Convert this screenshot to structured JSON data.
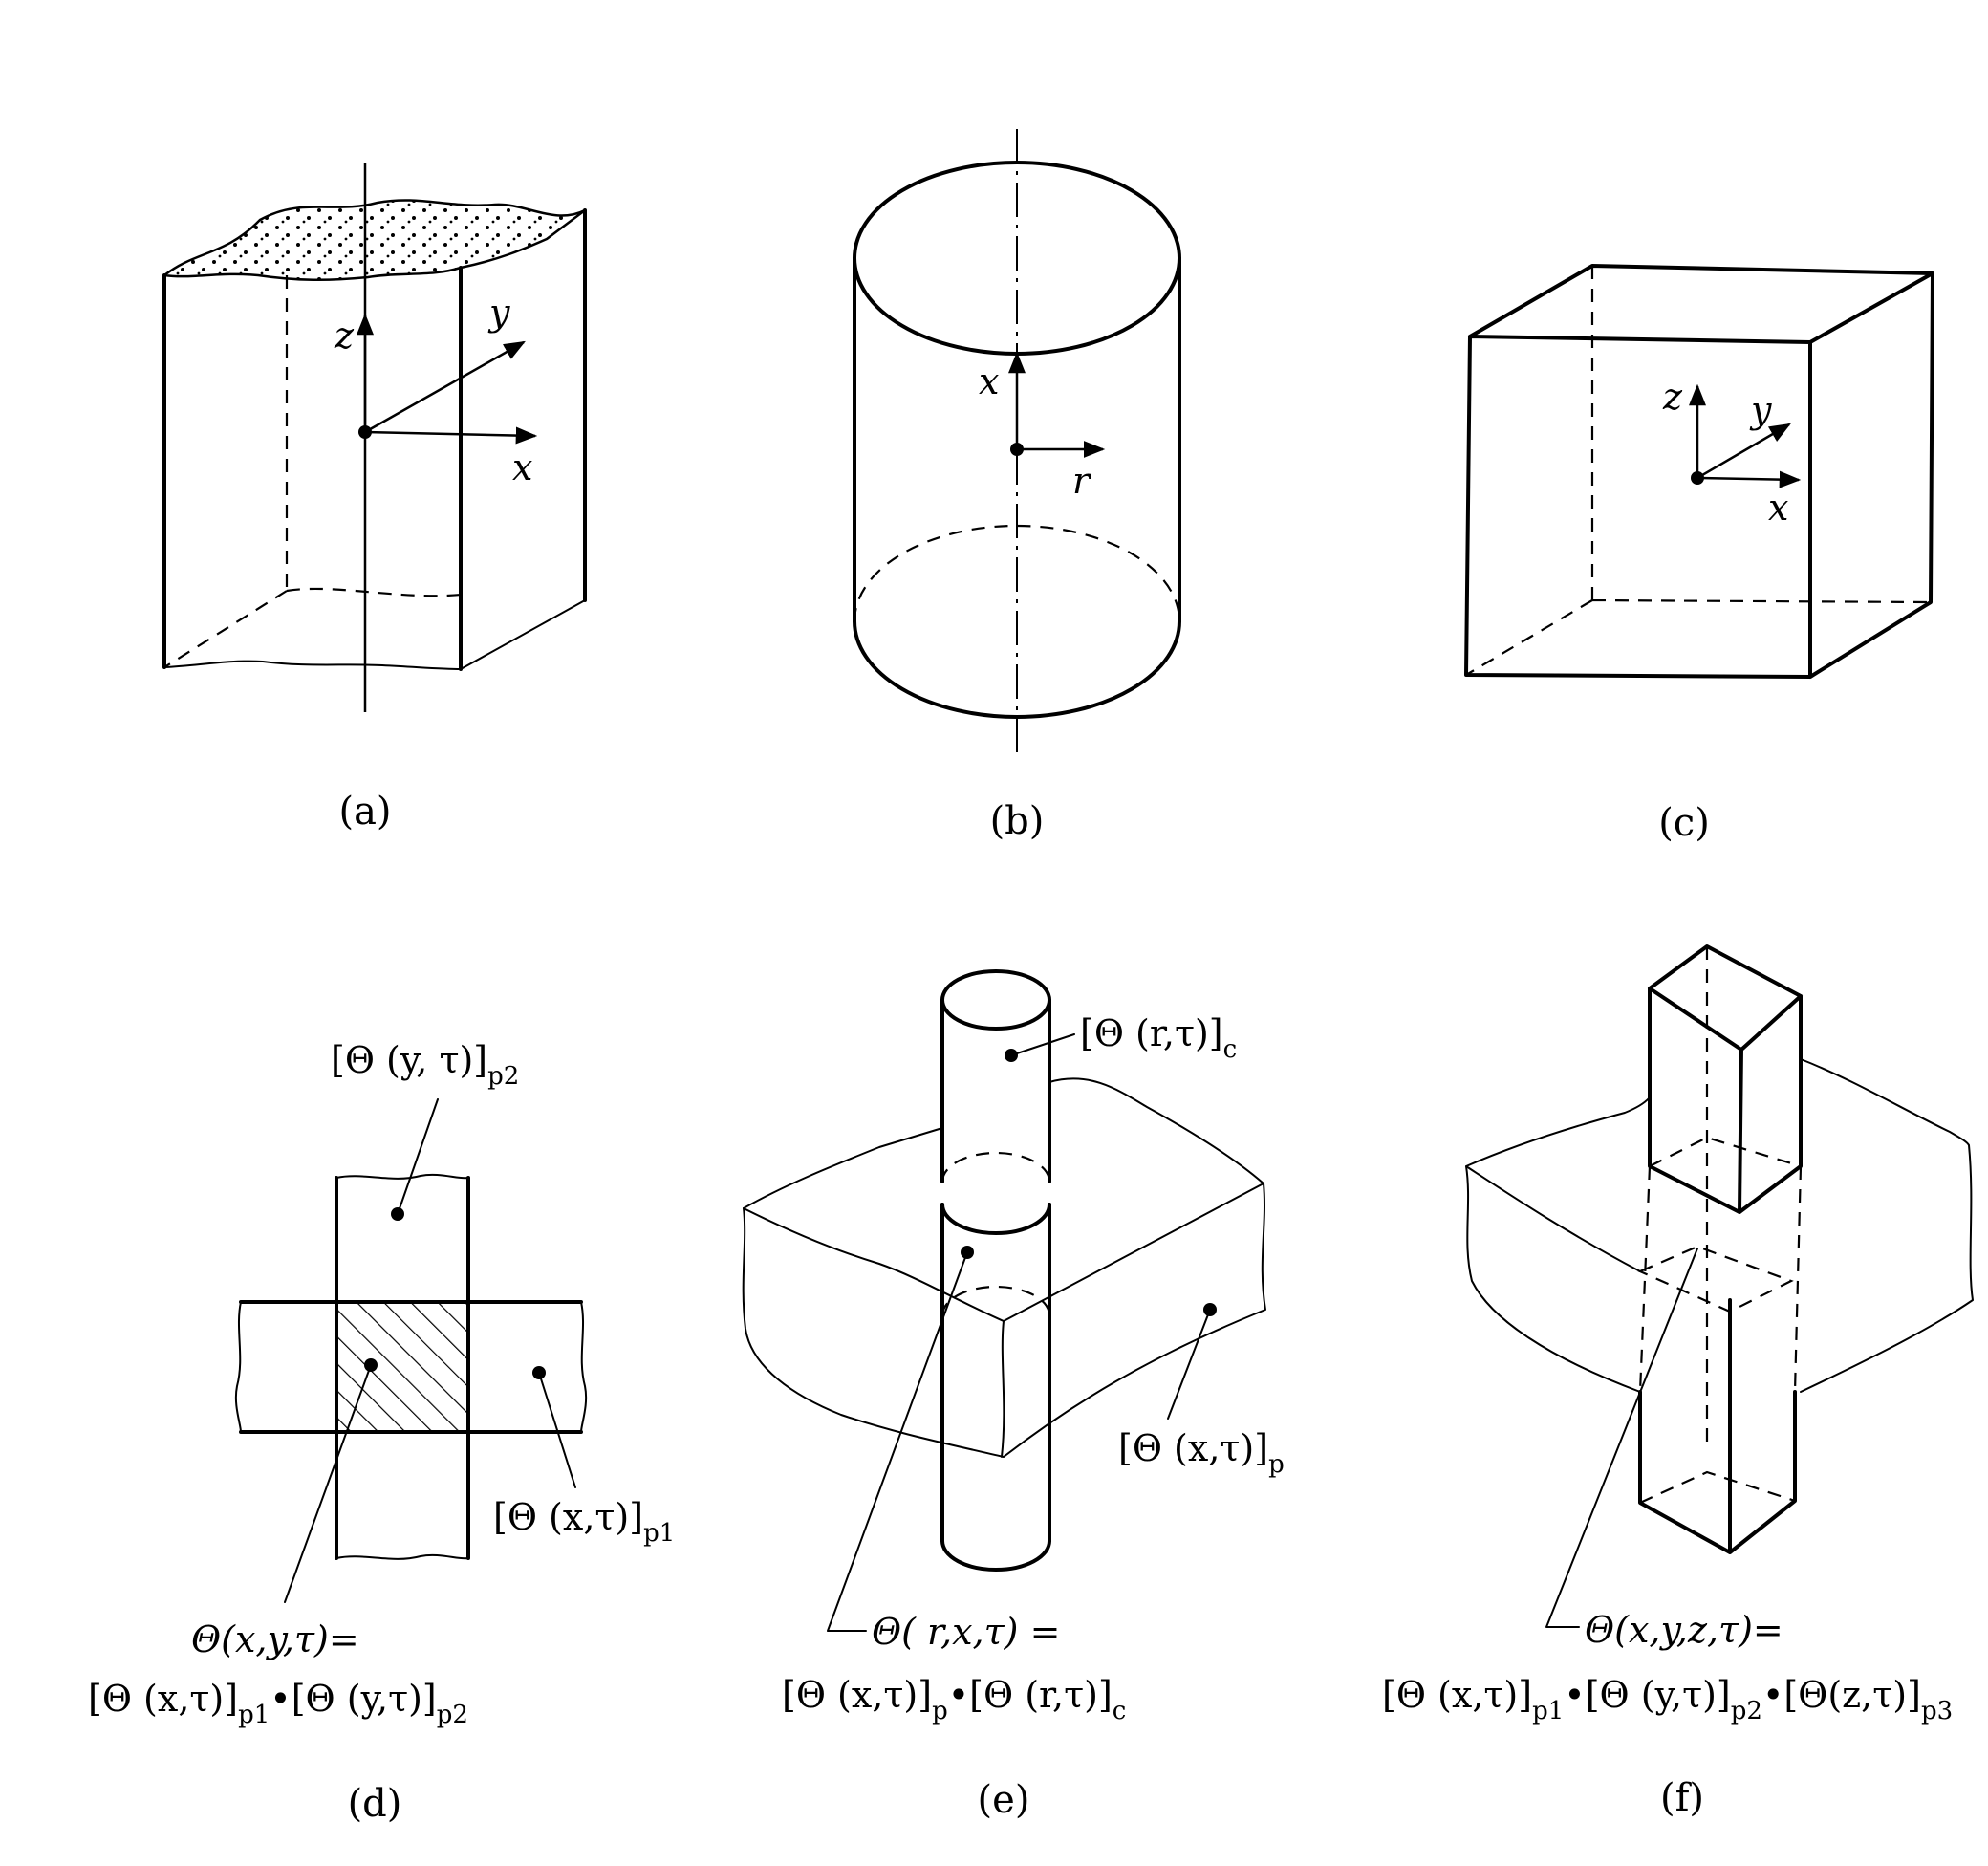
{
  "captions": {
    "a": "(a)",
    "b": "(b)",
    "c": "(c)",
    "d": "(d)",
    "e": "(e)",
    "f": "(f)"
  },
  "axes": {
    "a": {
      "z": "z",
      "y": "y",
      "x": "x"
    },
    "b": {
      "x": "x",
      "r": "r"
    },
    "c": {
      "z": "z",
      "y": "y",
      "x": "x"
    }
  },
  "labels": {
    "d": {
      "top": {
        "main": "[Θ (y, τ)]",
        "sub": "p2"
      },
      "right": {
        "main": "[Θ (x,τ)]",
        "sub": "p1"
      },
      "eq1": "Θ(x,y,τ)=",
      "eq2": {
        "a": "[Θ (x,τ)]",
        "a_sub": "p1",
        "dot": "•",
        "b": "[Θ (y,τ)]",
        "b_sub": "p2"
      }
    },
    "e": {
      "top": {
        "main": "[Θ (r,τ)]",
        "sub": "c"
      },
      "right": {
        "main": "[Θ (x,τ)]",
        "sub": "p"
      },
      "eq1": "Θ( r,x,τ) =",
      "eq2": {
        "a": "[Θ (x,τ)]",
        "a_sub": "p",
        "dot": "•",
        "b": "[Θ (r,τ)]",
        "b_sub": "c"
      }
    },
    "f": {
      "eq1": "Θ(x,y,z,τ)=",
      "eq2": {
        "a": "[Θ (x,τ)]",
        "a_sub": "p1",
        "dot1": "•",
        "b": "[Θ (y,τ)]",
        "b_sub": "p2",
        "dot2": "•",
        "c": "[Θ(z,τ)]",
        "c_sub": "p3"
      }
    }
  }
}
